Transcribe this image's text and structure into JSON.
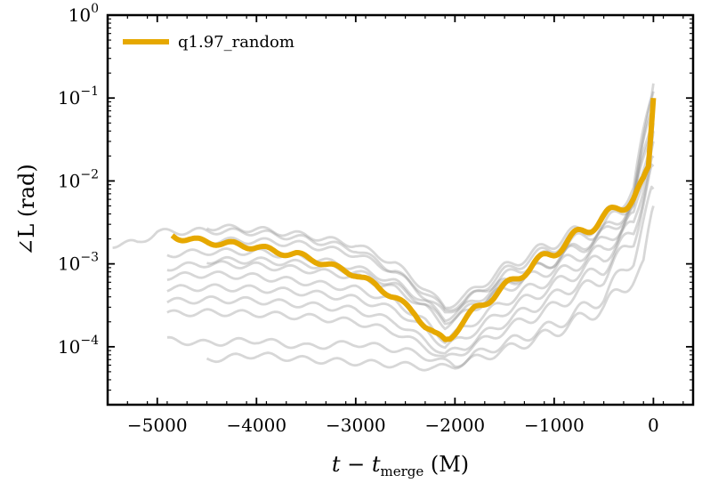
{
  "chart_data": {
    "type": "line",
    "title": "",
    "xlabel": "t − t",
    "xlabel_sub": "merge",
    "xlabel_unit": " (M)",
    "ylabel": "∠L (rad)",
    "yscale": "log",
    "xlim": [
      -5500,
      400
    ],
    "ylim": [
      2e-05,
      1
    ],
    "grid": false,
    "legend": {
      "position": "top-left",
      "entries": [
        "q1.97_random"
      ]
    },
    "x_ticks": [
      -5000,
      -4000,
      -3000,
      -2000,
      -1000,
      0
    ],
    "x_tick_labels": [
      "−5000",
      "−4000",
      "−3000",
      "−2000",
      "−1000",
      "0"
    ],
    "y_ticks": [
      {
        "value": 1,
        "base": "10",
        "exp": "0"
      },
      {
        "value": 0.1,
        "base": "10",
        "exp": "−1"
      },
      {
        "value": 0.01,
        "base": "10",
        "exp": "−2"
      },
      {
        "value": 0.001,
        "base": "10",
        "exp": "−3"
      },
      {
        "value": 0.0001,
        "base": "10",
        "exp": "−4"
      }
    ],
    "highlight_series": {
      "name": "q1.97_random",
      "color": "#e6a800",
      "x": [
        -4850,
        -4800,
        -4600,
        -4400,
        -4200,
        -4000,
        -3800,
        -3600,
        -3400,
        -3200,
        -3000,
        -2800,
        -2600,
        -2400,
        -2300,
        -2200,
        -2100,
        -2050,
        -1950,
        -1800,
        -1600,
        -1400,
        -1200,
        -1000,
        -800,
        -600,
        -400,
        -200,
        -100,
        -50,
        0
      ],
      "y": [
        0.0022,
        0.0021,
        0.0019,
        0.0018,
        0.0017,
        0.0016,
        0.0014,
        0.0013,
        0.0011,
        0.0009,
        0.00075,
        0.00055,
        0.00039,
        0.00025,
        0.00018,
        0.00014,
        0.00012,
        0.00013,
        0.00018,
        0.00028,
        0.00042,
        0.00065,
        0.001,
        0.0014,
        0.0021,
        0.003,
        0.0042,
        0.0065,
        0.009,
        0.013,
        0.1
      ]
    },
    "background_series": {
      "color": "#8c8c8c",
      "opacity": 0.35,
      "description_count": 38,
      "representative": [
        {
          "x": [
            -5450,
            -5200,
            -5000,
            -4500,
            -4000,
            -3500,
            -3000,
            -2600,
            -2300,
            -2100,
            -1900,
            -1500,
            -1000,
            -500,
            -200,
            0
          ],
          "y": [
            0.0017,
            0.0018,
            0.0024,
            0.0025,
            0.0024,
            0.002,
            0.0015,
            0.0008,
            0.0004,
            0.00025,
            0.00035,
            0.0007,
            0.0014,
            0.0028,
            0.006,
            0.12
          ]
        },
        {
          "x": [
            -4500,
            -4000,
            -3500,
            -3000,
            -2600,
            -2300,
            -2100,
            -1900,
            -1500,
            -1000,
            -500,
            -200,
            0
          ],
          "y": [
            0.0028,
            0.0026,
            0.0022,
            0.0017,
            0.001,
            0.0005,
            0.0003,
            0.0004,
            0.0009,
            0.0018,
            0.0035,
            0.008,
            0.15
          ]
        },
        {
          "x": [
            -4900,
            -4500,
            -4000,
            -3500,
            -3000,
            -2600,
            -2300,
            -2100,
            -1900,
            -1500,
            -1000,
            -500,
            -200,
            0
          ],
          "y": [
            0.0013,
            0.0014,
            0.0014,
            0.0012,
            0.0009,
            0.0006,
            0.00035,
            0.00022,
            0.0003,
            0.0006,
            0.0011,
            0.0022,
            0.005,
            0.06
          ]
        },
        {
          "x": [
            -4900,
            -4500,
            -4000,
            -3500,
            -3000,
            -2600,
            -2300,
            -2100,
            -1900,
            -1500,
            -1000,
            -500,
            -200,
            0
          ],
          "y": [
            0.0009,
            0.001,
            0.00095,
            0.00085,
            0.0007,
            0.0005,
            0.0003,
            0.00018,
            0.00025,
            0.0005,
            0.0009,
            0.0018,
            0.004,
            0.05
          ]
        },
        {
          "x": [
            -4900,
            -4500,
            -4000,
            -3500,
            -3000,
            -2600,
            -2300,
            -2100,
            -1900,
            -1500,
            -1000,
            -500,
            -200,
            0
          ],
          "y": [
            0.0007,
            0.00075,
            0.0007,
            0.0006,
            0.0005,
            0.00035,
            0.0002,
            0.00012,
            0.00017,
            0.00035,
            0.0007,
            0.0015,
            0.0035,
            0.04
          ]
        },
        {
          "x": [
            -4900,
            -4500,
            -4000,
            -3500,
            -3000,
            -2600,
            -2300,
            -2100,
            -1900,
            -1500,
            -1000,
            -500,
            -200,
            0
          ],
          "y": [
            0.0005,
            0.00052,
            0.0005,
            0.00045,
            0.00038,
            0.00028,
            0.00016,
            0.0001,
            0.00013,
            0.00027,
            0.00055,
            0.0012,
            0.003,
            0.03
          ]
        },
        {
          "x": [
            -4900,
            -4500,
            -4000,
            -3500,
            -3000,
            -2600,
            -2300,
            -2100,
            -1900,
            -1500,
            -1000,
            -500,
            -200,
            0
          ],
          "y": [
            0.00035,
            0.00037,
            0.00036,
            0.00032,
            0.00028,
            0.0002,
            0.00012,
            8e-05,
            0.0001,
            0.0002,
            0.0004,
            0.0009,
            0.0025,
            0.02
          ]
        },
        {
          "x": [
            -4900,
            -4500,
            -4000,
            -3500,
            -3000,
            -2600,
            -2300,
            -2100,
            -1900,
            -1500,
            -1000,
            -500,
            -200,
            0
          ],
          "y": [
            0.00025,
            0.00026,
            0.00025,
            0.00023,
            0.0002,
            0.00015,
            0.0001,
            7e-05,
            9e-05,
            0.00016,
            0.0003,
            0.0007,
            0.002,
            0.015
          ]
        },
        {
          "x": [
            -4900,
            -4500,
            -4000,
            -3500,
            -3000,
            -2500,
            -2200,
            -2000,
            -1800,
            -1400,
            -1000,
            -500,
            -200,
            0
          ],
          "y": [
            0.00012,
            0.00011,
            0.00012,
            0.0001,
            0.00011,
            9e-05,
            7e-05,
            6e-05,
            8e-05,
            0.00012,
            0.00018,
            0.0004,
            0.0012,
            0.008
          ]
        },
        {
          "x": [
            -4500,
            -4000,
            -3500,
            -3000,
            -2500,
            -2200,
            -2000,
            -1500,
            -1000,
            -500,
            -100,
            0
          ],
          "y": [
            7e-05,
            8e-05,
            7e-05,
            6.5e-05,
            6e-05,
            5.5e-05,
            6e-05,
            9e-05,
            0.00015,
            0.0003,
            0.0009,
            0.005
          ]
        },
        {
          "x": [
            -4500,
            -4000,
            -3500,
            -3000,
            -2600,
            -2300,
            -2100,
            -1900,
            -1500,
            -1000,
            -500,
            -200,
            0
          ],
          "y": [
            0.0019,
            0.0019,
            0.0017,
            0.0013,
            0.0008,
            0.00045,
            0.00028,
            0.00035,
            0.0008,
            0.0016,
            0.0033,
            0.007,
            0.09
          ]
        },
        {
          "x": [
            -4500,
            -4000,
            -3500,
            -3000,
            -2600,
            -2300,
            -2100,
            -1900,
            -1500,
            -1000,
            -500,
            -200,
            0
          ],
          "y": [
            0.0011,
            0.0011,
            0.001,
            0.0008,
            0.00055,
            0.00032,
            0.0002,
            0.00027,
            0.00055,
            0.0011,
            0.0024,
            0.0055,
            0.07
          ]
        }
      ]
    }
  }
}
